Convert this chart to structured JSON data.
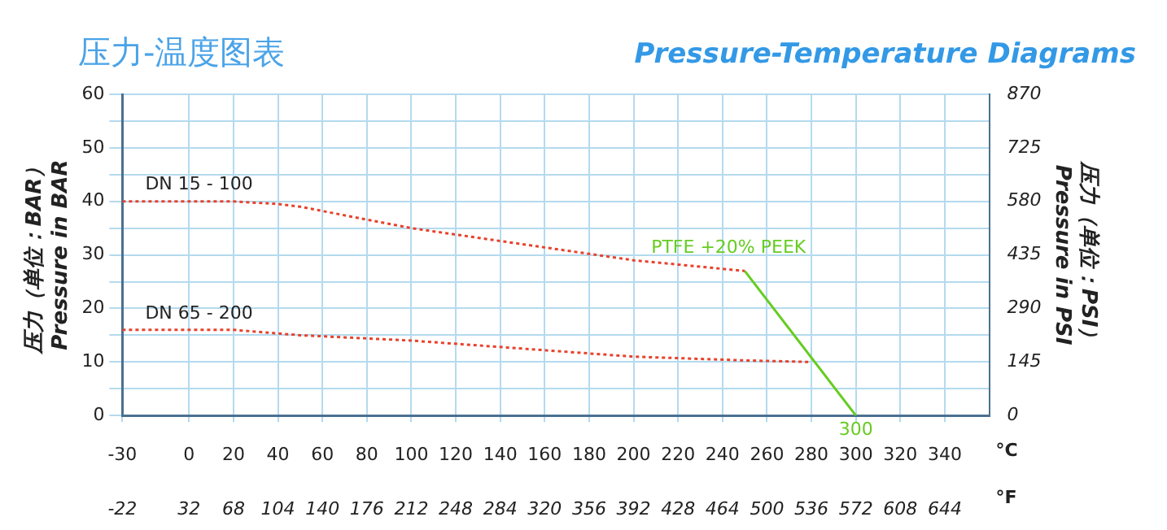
{
  "chart_data": {
    "type": "line",
    "title": "压力-温度图表",
    "subtitle": "Pressure-Temperature Diagrams",
    "xlabel": "°C",
    "x2label": "°F",
    "ylabel": "压力（单位：BAR）\nPressure in BAR",
    "y2label": "压力（单位：PSI）\nPressure in PSI",
    "xlim": [
      -30,
      360
    ],
    "xticks": [
      -30,
      0,
      20,
      40,
      60,
      80,
      100,
      120,
      140,
      160,
      180,
      200,
      220,
      240,
      260,
      280,
      300,
      320,
      340
    ],
    "x2lim": [
      -22,
      680
    ],
    "x2ticks": [
      -22,
      32,
      68,
      104,
      140,
      176,
      212,
      248,
      284,
      320,
      356,
      392,
      428,
      464,
      500,
      536,
      572,
      608,
      644
    ],
    "ylim": [
      0,
      60
    ],
    "yticks": [
      0,
      {
        "value": 5,
        "label": null
      },
      10,
      {
        "value": 15,
        "label": null
      },
      20,
      {
        "value": 25,
        "label": null
      },
      30,
      {
        "value": 35,
        "label": null
      },
      40,
      {
        "value": 45,
        "label": null
      },
      50,
      {
        "value": 55,
        "label": null
      },
      60
    ],
    "y2lim": [
      0,
      870
    ],
    "y2ticks": [
      0,
      145,
      290,
      435,
      580,
      725,
      870
    ],
    "grid": true,
    "legend": false,
    "marker": "none",
    "series": [
      {
        "name": "DN 15 - 100",
        "color": "#e8412c",
        "line_style": "dotted",
        "x": [
          -30,
          20,
          40,
          50,
          100,
          150,
          200,
          250
        ],
        "values": [
          40,
          40,
          39.5,
          39,
          35,
          32,
          29,
          27
        ]
      },
      {
        "name": "DN 65 - 200",
        "color": "#e8412c",
        "line_style": "dotted",
        "x": [
          -30,
          20,
          50,
          100,
          150,
          200,
          250,
          280
        ],
        "values": [
          16,
          16,
          15,
          14,
          12.5,
          11,
          10.3,
          10
        ]
      },
      {
        "name": "PTFE +20% PEEK",
        "color": "#66cc22",
        "line_style": "solid",
        "x": [
          250,
          300
        ],
        "values": [
          27,
          0
        ]
      }
    ],
    "annotations": [
      {
        "text": "300",
        "x": 300,
        "y": 0
      }
    ]
  }
}
